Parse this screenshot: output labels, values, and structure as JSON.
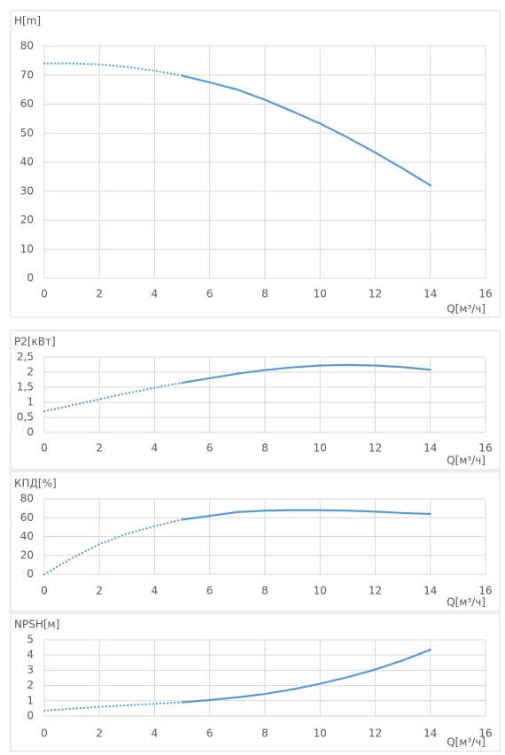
{
  "chart_data": [
    {
      "type": "line",
      "y_label": "H[m]",
      "x_label": "Q[м³/ч]",
      "x": [
        0,
        1,
        2,
        3,
        4,
        5,
        6,
        7,
        8,
        9,
        10,
        11,
        12,
        13,
        14
      ],
      "series": [
        {
          "color": "#5b9bd5",
          "style": "dotted",
          "values": [
            74,
            74,
            73.7,
            72.8,
            71.5,
            69.8,
            null,
            null,
            null,
            null,
            null,
            null,
            null,
            null,
            null
          ]
        },
        {
          "color": "#5b9bd5",
          "style": "solid",
          "values": [
            null,
            null,
            null,
            null,
            null,
            69.8,
            67.5,
            65,
            61.5,
            57.5,
            53.3,
            48.5,
            43.3,
            37.8,
            32
          ]
        }
      ],
      "xlim": [
        0,
        16
      ],
      "xticks": [
        0,
        2,
        4,
        6,
        8,
        10,
        12,
        14,
        16
      ],
      "ylim": [
        0,
        80
      ],
      "yticks": [
        0,
        10,
        20,
        30,
        40,
        50,
        60,
        70,
        80
      ],
      "grid": true
    },
    {
      "type": "line",
      "y_label": "P2[кВт]",
      "x_label": "Q[м³/ч]",
      "x": [
        0,
        1,
        2,
        3,
        4,
        5,
        6,
        7,
        8,
        9,
        10,
        11,
        12,
        13,
        14
      ],
      "series": [
        {
          "color": "#5b9bd5",
          "style": "dotted",
          "values": [
            0.7,
            0.9,
            1.1,
            1.3,
            1.48,
            1.65,
            null,
            null,
            null,
            null,
            null,
            null,
            null,
            null,
            null
          ]
        },
        {
          "color": "#5b9bd5",
          "style": "solid",
          "values": [
            null,
            null,
            null,
            null,
            null,
            1.65,
            1.8,
            1.95,
            2.07,
            2.16,
            2.22,
            2.24,
            2.22,
            2.17,
            2.08
          ]
        }
      ],
      "xlim": [
        0,
        16
      ],
      "xticks": [
        0,
        2,
        4,
        6,
        8,
        10,
        12,
        14,
        16
      ],
      "ylim": [
        0,
        2.5
      ],
      "yticks": [
        0,
        {
          "value": 0.5,
          "label": "0,5"
        },
        1,
        {
          "value": 1.5,
          "label": "1,5"
        },
        2,
        {
          "value": 2.5,
          "label": "2,5"
        }
      ],
      "grid": true
    },
    {
      "type": "line",
      "y_label": "КПД[%]",
      "x_label": "Q[м³/ч]",
      "x": [
        0,
        1,
        2,
        3,
        4,
        5,
        6,
        7,
        8,
        9,
        10,
        11,
        12,
        13,
        14
      ],
      "series": [
        {
          "color": "#5b9bd5",
          "style": "dotted",
          "values": [
            0,
            17,
            32,
            43,
            51,
            58,
            null,
            null,
            null,
            null,
            null,
            null,
            null,
            null,
            null
          ]
        },
        {
          "color": "#5b9bd5",
          "style": "solid",
          "values": [
            null,
            null,
            null,
            null,
            null,
            58,
            62,
            66,
            67.5,
            68,
            68,
            67.5,
            66.5,
            65,
            64
          ]
        }
      ],
      "xlim": [
        0,
        16
      ],
      "xticks": [
        0,
        2,
        4,
        6,
        8,
        10,
        12,
        14,
        16
      ],
      "ylim": [
        0,
        80
      ],
      "yticks": [
        0,
        20,
        40,
        60,
        80
      ],
      "grid": true
    },
    {
      "type": "line",
      "y_label": "NPSH[м]",
      "x_label": "Q[м³/ч]",
      "x": [
        0,
        1,
        2,
        3,
        4,
        5,
        6,
        7,
        8,
        9,
        10,
        11,
        12,
        13,
        14
      ],
      "series": [
        {
          "color": "#5b9bd5",
          "style": "dotted",
          "values": [
            0.35,
            0.48,
            0.6,
            0.7,
            0.8,
            0.9,
            null,
            null,
            null,
            null,
            null,
            null,
            null,
            null,
            null
          ]
        },
        {
          "color": "#5b9bd5",
          "style": "solid",
          "values": [
            null,
            null,
            null,
            null,
            null,
            0.9,
            1.05,
            1.22,
            1.45,
            1.75,
            2.12,
            2.55,
            3.05,
            3.65,
            4.35
          ]
        }
      ],
      "xlim": [
        0,
        16
      ],
      "xticks": [
        0,
        2,
        4,
        6,
        8,
        10,
        12,
        14,
        16
      ],
      "ylim": [
        0,
        5
      ],
      "yticks": [
        0,
        1,
        2,
        3,
        4,
        5
      ],
      "grid": true
    }
  ]
}
